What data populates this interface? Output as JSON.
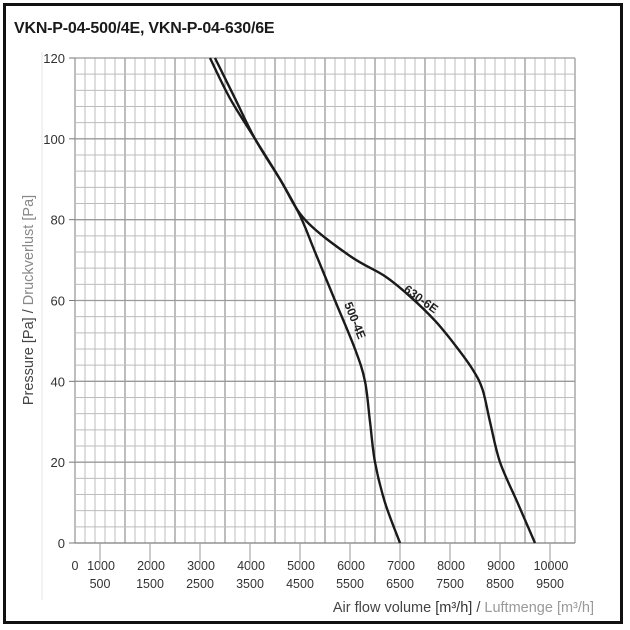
{
  "title": "VKN-P-04-500/4E, VKN-P-04-630/6E",
  "y_axis": {
    "label_en": "Pressure [Pa]",
    "sep": " / ",
    "label_de": "Druckverlust [Pa]",
    "ticks": [
      "0",
      "20",
      "40",
      "60",
      "80",
      "100",
      "120"
    ]
  },
  "x_axis": {
    "label_en": "Air flow volume ",
    "unit_en": "[m³/h]",
    "sep": " / ",
    "label_de": "Luftmenge [m³/h]",
    "ticks_upper": [
      "0",
      "1000",
      "2000",
      "3000",
      "4000",
      "5000",
      "6000",
      "7000",
      "8000",
      "9000",
      "10000"
    ],
    "ticks_lower": [
      "500",
      "1500",
      "2500",
      "3500",
      "4500",
      "5500",
      "6500",
      "7500",
      "8500",
      "9500"
    ]
  },
  "curve_labels": {
    "c500": "500-4E",
    "c630": "630-6E"
  },
  "chart_data": {
    "type": "line",
    "title": "VKN-P-04-500/4E, VKN-P-04-630/6E",
    "xlabel": "Air flow volume [m³/h] / Luftmenge [m³/h]",
    "ylabel": "Pressure [Pa] / Druckverlust [Pa]",
    "xlim": [
      0,
      10000
    ],
    "ylim": [
      0,
      120
    ],
    "grid": true,
    "x_minor_step": 200,
    "y_minor_step": 4,
    "series": [
      {
        "name": "500-4E",
        "x": [
          2700,
          3100,
          3600,
          4100,
          4500,
          4800,
          5200,
          5600,
          5800,
          5900,
          6000,
          6200,
          6500
        ],
        "y": [
          120,
          110,
          100,
          90,
          81,
          72,
          60,
          48,
          40,
          30,
          20,
          10,
          0
        ]
      },
      {
        "name": "630-6E",
        "x": [
          2800,
          3200,
          3600,
          4100,
          4600,
          5500,
          6200,
          6700,
          7200,
          7600,
          7950,
          8150,
          8300,
          8500,
          8850,
          9200
        ],
        "y": [
          120,
          110,
          100,
          90,
          80,
          71,
          66,
          61,
          55,
          49,
          43,
          38,
          30,
          20,
          10,
          0
        ]
      }
    ]
  }
}
